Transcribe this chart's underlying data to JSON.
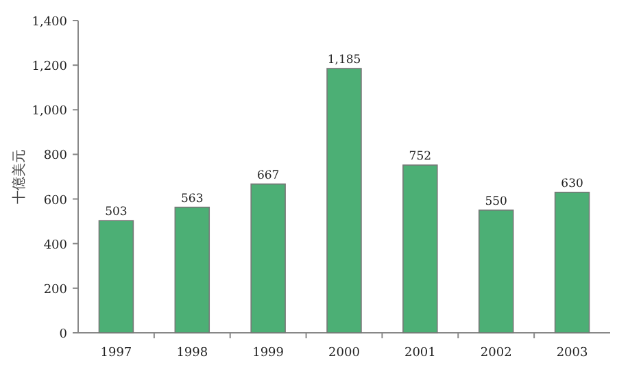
{
  "chart_data": {
    "type": "bar",
    "ylabel": "十億美元",
    "categories": [
      "1997",
      "1998",
      "1999",
      "2000",
      "2001",
      "2002",
      "2003"
    ],
    "values": [
      503,
      563,
      667,
      1185,
      752,
      550,
      630
    ],
    "color": "#4caf75",
    "ylim": [
      0,
      1400
    ],
    "yticks": [
      {
        "value": 0,
        "label": "0"
      },
      {
        "value": 200,
        "label": "200"
      },
      {
        "value": 400,
        "label": "400"
      },
      {
        "value": 600,
        "label": "600"
      },
      {
        "value": 800,
        "label": "800"
      },
      {
        "value": 1000,
        "label": "1,000"
      },
      {
        "value": 1200,
        "label": "1,200"
      },
      {
        "value": 1400,
        "label": "1,400"
      }
    ],
    "value_labels": [
      "503",
      "563",
      "667",
      "1,185",
      "752",
      "550",
      "630"
    ]
  }
}
